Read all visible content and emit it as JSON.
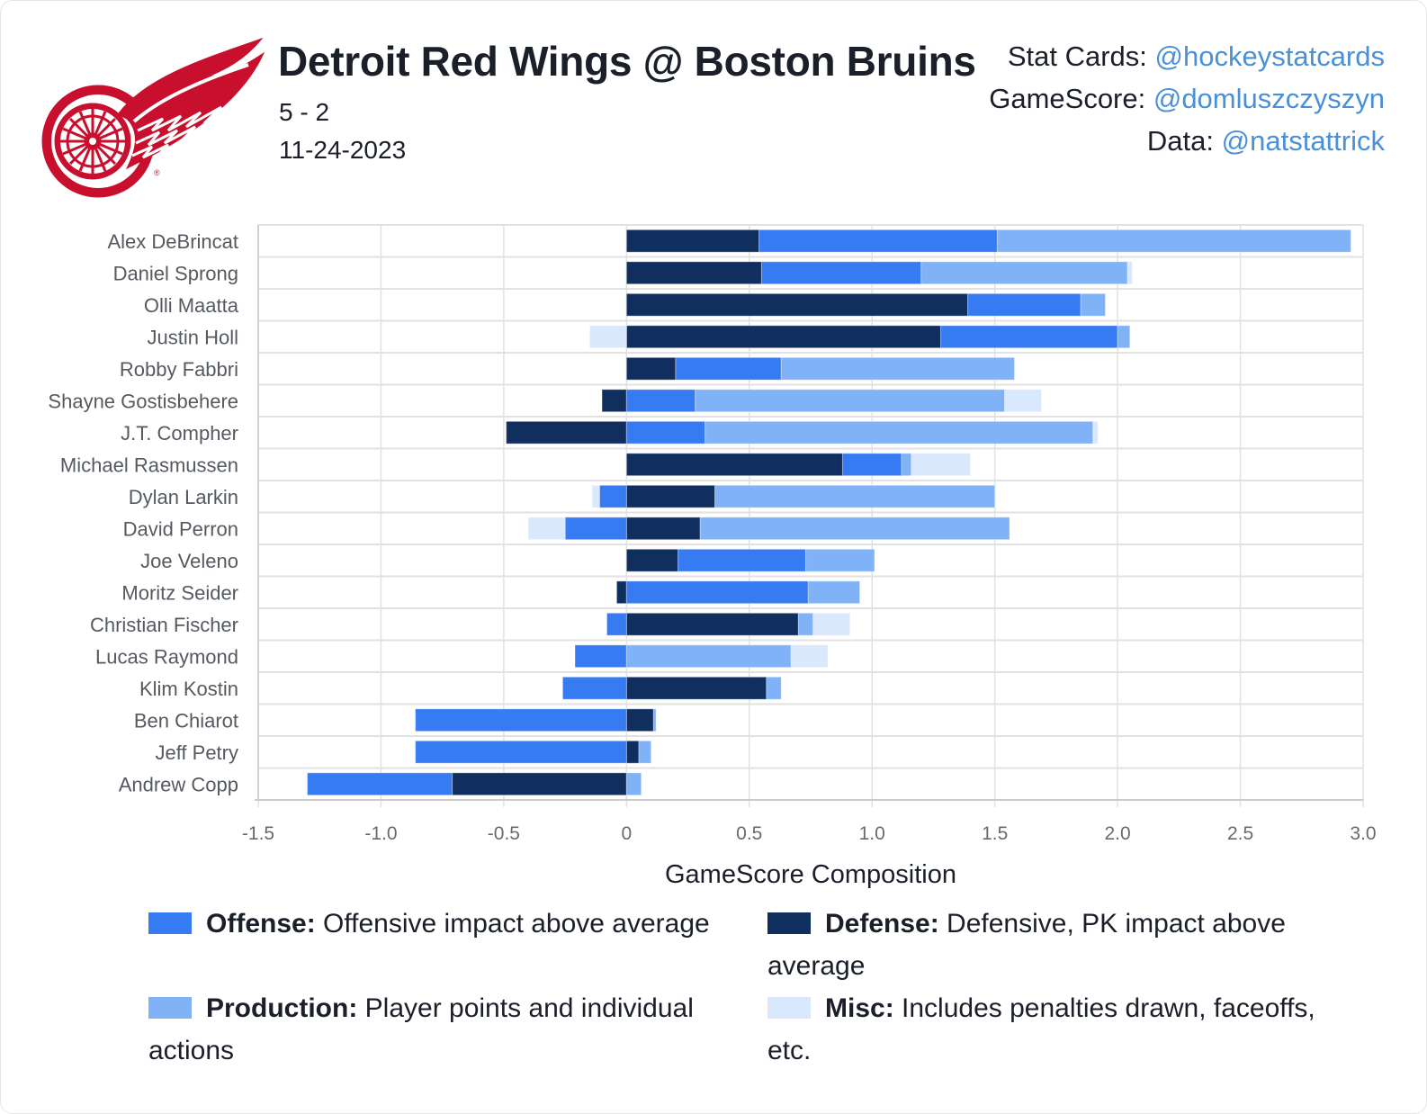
{
  "header": {
    "title": "Detroit Red Wings @ Boston Bruins",
    "score": "5 - 2",
    "date": "11-24-2023",
    "logo_icon": "red-wings-winged-wheel-logo",
    "logo_color": "#c8102e"
  },
  "credits": [
    {
      "label": "Stat Cards: ",
      "handle": "@hockeystatcards"
    },
    {
      "label": "GameScore: ",
      "handle": "@domluszczyszyn"
    },
    {
      "label": "Data: ",
      "handle": "@natstattrick"
    }
  ],
  "colors": {
    "offense": "#377bf3",
    "defense": "#112f5e",
    "production": "#80b2f7",
    "misc": "#d9e8fc",
    "link": "#4a90d9"
  },
  "chart_data": {
    "type": "bar",
    "orientation": "horizontal",
    "stacked": true,
    "title": "",
    "xlabel": "GameScore Composition",
    "ylabel": "",
    "xlim": [
      -1.5,
      3.0
    ],
    "xticks": [
      -1.5,
      -1.0,
      -0.5,
      0,
      0.5,
      1.0,
      1.5,
      2.0,
      2.5,
      3.0
    ],
    "xtick_labels": [
      "-1.5",
      "-1.0",
      "-0.5",
      "0",
      "0.5",
      "1.0",
      "1.5",
      "2.0",
      "2.5",
      "3.0"
    ],
    "grid": true,
    "legend_position": "bottom",
    "categories": [
      "Alex DeBrincat",
      "Daniel Sprong",
      "Olli Maatta",
      "Justin Holl",
      "Robby Fabbri",
      "Shayne Gostisbehere",
      "J.T. Compher",
      "Michael Rasmussen",
      "Dylan Larkin",
      "David Perron",
      "Joe Veleno",
      "Moritz Seider",
      "Christian Fischer",
      "Lucas Raymond",
      "Klim Kostin",
      "Ben Chiarot",
      "Jeff Petry",
      "Andrew Copp"
    ],
    "series": [
      {
        "name": "Defense",
        "key": "defense",
        "values": [
          0.54,
          0.55,
          1.39,
          1.28,
          0.2,
          -0.1,
          -0.49,
          0.88,
          0.36,
          0.3,
          0.21,
          -0.04,
          0.7,
          0.0,
          0.57,
          0.11,
          0.05,
          -0.71
        ]
      },
      {
        "name": "Offense",
        "key": "offense",
        "values": [
          0.97,
          0.65,
          0.46,
          0.72,
          0.43,
          0.28,
          0.32,
          0.24,
          -0.11,
          -0.25,
          0.52,
          0.74,
          -0.08,
          -0.21,
          -0.26,
          -0.86,
          -0.86,
          -0.59
        ]
      },
      {
        "name": "Production",
        "key": "production",
        "values": [
          1.44,
          0.84,
          0.1,
          0.05,
          0.95,
          1.26,
          1.58,
          0.04,
          1.14,
          1.26,
          0.28,
          0.21,
          0.06,
          0.67,
          0.06,
          0.01,
          0.05,
          0.06
        ]
      },
      {
        "name": "Misc",
        "key": "misc",
        "values": [
          0.0,
          0.02,
          0.0,
          -0.15,
          0.0,
          0.15,
          0.02,
          0.24,
          -0.03,
          -0.15,
          0.0,
          0.0,
          0.15,
          0.15,
          0.0,
          0.0,
          0.0,
          0.0
        ]
      }
    ]
  },
  "legend": [
    {
      "key": "offense",
      "name": "Offense:",
      "desc": " Offensive impact above average"
    },
    {
      "key": "defense",
      "name": "Defense:",
      "desc": " Defensive, PK impact above average"
    },
    {
      "key": "production",
      "name": "Production:",
      "desc": " Player points and individual actions"
    },
    {
      "key": "misc",
      "name": "Misc:",
      "desc": " Includes penalties drawn, faceoffs, etc."
    }
  ]
}
